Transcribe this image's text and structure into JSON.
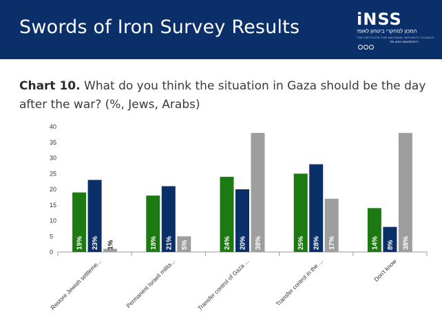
{
  "header": {
    "title": "Swords of Iron Survey Results",
    "logo_text": "iNSS",
    "logo_hebrew": "המכון למחקרי ביטחון לאומי",
    "logo_english": "THE INSTITUTE FOR NATIONAL SECURITY STUDIES",
    "logo_university": "TEL AVIV UNIVERSITY",
    "bg_color": "#0b3069"
  },
  "chart_heading": {
    "prefix": "Chart 10.",
    "text": "What do you think the situation in Gaza should be the day after the war? (%, Jews, Arabs)"
  },
  "chart_data": {
    "type": "bar",
    "categories": [
      "Restore Jewish settleme...",
      "Permanent Israeli milita...",
      "Transfer control of Gaza ...",
      "Transfer control in the ...",
      "Don't know"
    ],
    "series": [
      {
        "color": "#1d7a12",
        "values": [
          19,
          18,
          24,
          25,
          14
        ]
      },
      {
        "color": "#0b3069",
        "values": [
          23,
          21,
          20,
          28,
          8
        ]
      },
      {
        "color": "#9e9e9e",
        "values": [
          1,
          5,
          38,
          17,
          38
        ]
      }
    ],
    "ylim": [
      0,
      40
    ],
    "yticks": [
      0,
      5,
      10,
      15,
      20,
      25,
      30,
      35,
      40
    ],
    "label_suffix": "%",
    "grid": false,
    "legend": "none"
  }
}
